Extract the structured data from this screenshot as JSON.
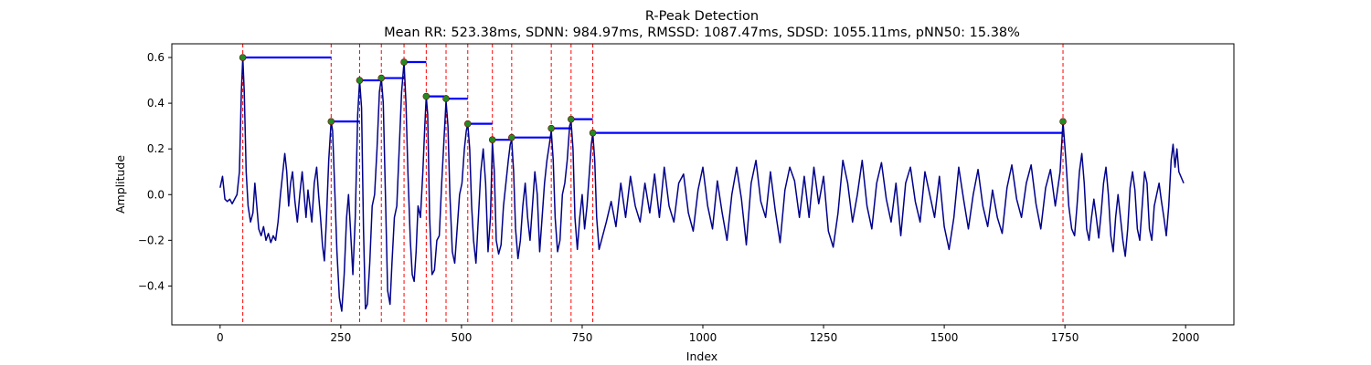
{
  "chart_data": {
    "type": "line",
    "title": "R-Peak Detection",
    "subtitle": "Mean RR: 523.38ms, SDNN: 984.97ms, RMSSD: 1087.47ms, SDSD: 1055.11ms, pNN50: 15.38%",
    "xlabel": "Index",
    "ylabel": "Amplitude",
    "xlim": [
      -100,
      2100
    ],
    "ylim": [
      -0.57,
      0.66
    ],
    "xticks": [
      0,
      250,
      500,
      750,
      1000,
      1250,
      1500,
      1750,
      2000
    ],
    "xtick_labels": [
      "0",
      "250",
      "500",
      "750",
      "1000",
      "1250",
      "1500",
      "1750",
      "2000"
    ],
    "yticks": [
      -0.4,
      -0.2,
      0.0,
      0.2,
      0.4,
      0.6
    ],
    "ytick_labels": [
      "−0.4",
      "−0.2",
      "0.0",
      "0.2",
      "0.4",
      "0.6"
    ],
    "grid": false,
    "signal": {
      "color": "#00008b",
      "points": [
        [
          0,
          0.03
        ],
        [
          5,
          0.08
        ],
        [
          10,
          -0.02
        ],
        [
          15,
          -0.03
        ],
        [
          20,
          -0.02
        ],
        [
          25,
          -0.04
        ],
        [
          30,
          -0.02
        ],
        [
          35,
          0.0
        ],
        [
          40,
          0.1
        ],
        [
          44,
          0.45
        ],
        [
          47,
          0.6
        ],
        [
          50,
          0.45
        ],
        [
          54,
          0.1
        ],
        [
          58,
          -0.05
        ],
        [
          63,
          -0.12
        ],
        [
          68,
          -0.08
        ],
        [
          72,
          0.05
        ],
        [
          76,
          -0.05
        ],
        [
          80,
          -0.15
        ],
        [
          85,
          -0.18
        ],
        [
          90,
          -0.14
        ],
        [
          95,
          -0.2
        ],
        [
          100,
          -0.17
        ],
        [
          105,
          -0.21
        ],
        [
          110,
          -0.18
        ],
        [
          115,
          -0.2
        ],
        [
          120,
          -0.12
        ],
        [
          125,
          0.0
        ],
        [
          130,
          0.1
        ],
        [
          134,
          0.18
        ],
        [
          138,
          0.1
        ],
        [
          142,
          -0.05
        ],
        [
          146,
          0.05
        ],
        [
          150,
          0.1
        ],
        [
          155,
          -0.03
        ],
        [
          160,
          -0.12
        ],
        [
          165,
          0.0
        ],
        [
          170,
          0.1
        ],
        [
          174,
          0.0
        ],
        [
          178,
          -0.1
        ],
        [
          182,
          0.02
        ],
        [
          186,
          -0.05
        ],
        [
          190,
          -0.12
        ],
        [
          195,
          0.05
        ],
        [
          200,
          0.12
        ],
        [
          204,
          0.0
        ],
        [
          208,
          -0.1
        ],
        [
          212,
          -0.22
        ],
        [
          216,
          -0.29
        ],
        [
          220,
          -0.12
        ],
        [
          225,
          0.15
        ],
        [
          230,
          0.32
        ],
        [
          233,
          0.28
        ],
        [
          237,
          0.05
        ],
        [
          242,
          -0.25
        ],
        [
          247,
          -0.45
        ],
        [
          252,
          -0.51
        ],
        [
          257,
          -0.35
        ],
        [
          262,
          -0.1
        ],
        [
          266,
          0.0
        ],
        [
          270,
          -0.15
        ],
        [
          275,
          -0.35
        ],
        [
          280,
          -0.1
        ],
        [
          285,
          0.35
        ],
        [
          289,
          0.5
        ],
        [
          293,
          0.38
        ],
        [
          297,
          -0.15
        ],
        [
          301,
          -0.5
        ],
        [
          305,
          -0.48
        ],
        [
          310,
          -0.3
        ],
        [
          315,
          -0.05
        ],
        [
          320,
          0.0
        ],
        [
          325,
          0.2
        ],
        [
          330,
          0.45
        ],
        [
          334,
          0.51
        ],
        [
          338,
          0.4
        ],
        [
          343,
          -0.05
        ],
        [
          347,
          -0.42
        ],
        [
          352,
          -0.48
        ],
        [
          356,
          -0.3
        ],
        [
          361,
          -0.1
        ],
        [
          366,
          -0.05
        ],
        [
          371,
          0.2
        ],
        [
          376,
          0.45
        ],
        [
          381,
          0.58
        ],
        [
          385,
          0.4
        ],
        [
          389,
          0.1
        ],
        [
          394,
          -0.2
        ],
        [
          398,
          -0.35
        ],
        [
          402,
          -0.38
        ],
        [
          406,
          -0.25
        ],
        [
          410,
          -0.05
        ],
        [
          415,
          -0.1
        ],
        [
          420,
          0.1
        ],
        [
          424,
          0.3
        ],
        [
          427,
          0.43
        ],
        [
          430,
          0.35
        ],
        [
          434,
          -0.1
        ],
        [
          439,
          -0.35
        ],
        [
          444,
          -0.33
        ],
        [
          449,
          -0.2
        ],
        [
          454,
          -0.18
        ],
        [
          459,
          0.05
        ],
        [
          464,
          0.25
        ],
        [
          468,
          0.41
        ],
        [
          472,
          0.3
        ],
        [
          476,
          0.0
        ],
        [
          481,
          -0.25
        ],
        [
          486,
          -0.3
        ],
        [
          491,
          -0.15
        ],
        [
          496,
          0.0
        ],
        [
          501,
          0.05
        ],
        [
          506,
          0.2
        ],
        [
          510,
          0.28
        ],
        [
          513,
          0.31
        ],
        [
          517,
          0.2
        ],
        [
          521,
          -0.05
        ],
        [
          525,
          -0.2
        ],
        [
          530,
          -0.3
        ],
        [
          535,
          -0.1
        ],
        [
          540,
          0.1
        ],
        [
          545,
          0.2
        ],
        [
          550,
          0.05
        ],
        [
          555,
          -0.25
        ],
        [
          560,
          -0.1
        ],
        [
          564,
          0.23
        ],
        [
          568,
          0.1
        ],
        [
          572,
          -0.2
        ],
        [
          577,
          -0.26
        ],
        [
          582,
          -0.22
        ],
        [
          587,
          -0.05
        ],
        [
          592,
          0.05
        ],
        [
          597,
          0.15
        ],
        [
          601,
          0.22
        ],
        [
          604,
          0.24
        ],
        [
          608,
          0.1
        ],
        [
          612,
          -0.15
        ],
        [
          617,
          -0.28
        ],
        [
          622,
          -0.2
        ],
        [
          627,
          -0.05
        ],
        [
          632,
          0.05
        ],
        [
          637,
          -0.1
        ],
        [
          642,
          -0.2
        ],
        [
          647,
          -0.05
        ],
        [
          652,
          0.1
        ],
        [
          657,
          0.0
        ],
        [
          662,
          -0.25
        ],
        [
          667,
          -0.1
        ],
        [
          672,
          0.05
        ],
        [
          677,
          0.15
        ],
        [
          682,
          0.22
        ],
        [
          686,
          0.28
        ],
        [
          690,
          0.15
        ],
        [
          694,
          -0.1
        ],
        [
          699,
          -0.25
        ],
        [
          704,
          -0.2
        ],
        [
          709,
          0.0
        ],
        [
          714,
          0.05
        ],
        [
          719,
          0.15
        ],
        [
          724,
          0.3
        ],
        [
          727,
          0.32
        ],
        [
          731,
          0.2
        ],
        [
          735,
          -0.1
        ],
        [
          740,
          -0.24
        ],
        [
          745,
          -0.1
        ],
        [
          750,
          0.0
        ],
        [
          755,
          -0.15
        ],
        [
          760,
          -0.05
        ],
        [
          765,
          0.1
        ],
        [
          769,
          0.22
        ],
        [
          772,
          0.27
        ],
        [
          776,
          0.15
        ],
        [
          780,
          -0.1
        ],
        [
          785,
          -0.24
        ],
        [
          790,
          -0.2
        ],
        [
          800,
          -0.12
        ],
        [
          810,
          -0.03
        ],
        [
          820,
          -0.14
        ],
        [
          830,
          0.05
        ],
        [
          840,
          -0.1
        ],
        [
          850,
          0.08
        ],
        [
          860,
          -0.05
        ],
        [
          870,
          -0.12
        ],
        [
          880,
          0.05
        ],
        [
          890,
          -0.08
        ],
        [
          900,
          0.09
        ],
        [
          910,
          -0.1
        ],
        [
          920,
          0.12
        ],
        [
          930,
          -0.05
        ],
        [
          940,
          -0.12
        ],
        [
          950,
          0.05
        ],
        [
          960,
          0.09
        ],
        [
          970,
          -0.08
        ],
        [
          980,
          -0.16
        ],
        [
          990,
          0.02
        ],
        [
          1000,
          0.12
        ],
        [
          1010,
          -0.05
        ],
        [
          1020,
          -0.15
        ],
        [
          1030,
          0.06
        ],
        [
          1040,
          -0.08
        ],
        [
          1050,
          -0.2
        ],
        [
          1060,
          0.0
        ],
        [
          1070,
          0.12
        ],
        [
          1080,
          -0.02
        ],
        [
          1090,
          -0.22
        ],
        [
          1100,
          0.05
        ],
        [
          1110,
          0.15
        ],
        [
          1120,
          -0.03
        ],
        [
          1130,
          -0.1
        ],
        [
          1140,
          0.1
        ],
        [
          1150,
          -0.07
        ],
        [
          1160,
          -0.21
        ],
        [
          1170,
          0.02
        ],
        [
          1180,
          0.12
        ],
        [
          1190,
          0.06
        ],
        [
          1200,
          -0.1
        ],
        [
          1210,
          0.08
        ],
        [
          1220,
          -0.1
        ],
        [
          1230,
          0.12
        ],
        [
          1240,
          -0.04
        ],
        [
          1250,
          0.08
        ],
        [
          1260,
          -0.16
        ],
        [
          1270,
          -0.23
        ],
        [
          1280,
          -0.08
        ],
        [
          1290,
          0.15
        ],
        [
          1300,
          0.05
        ],
        [
          1310,
          -0.12
        ],
        [
          1320,
          0.0
        ],
        [
          1330,
          0.15
        ],
        [
          1340,
          -0.05
        ],
        [
          1350,
          -0.15
        ],
        [
          1360,
          0.05
        ],
        [
          1370,
          0.14
        ],
        [
          1380,
          -0.02
        ],
        [
          1390,
          -0.12
        ],
        [
          1400,
          0.05
        ],
        [
          1410,
          -0.18
        ],
        [
          1420,
          0.05
        ],
        [
          1430,
          0.12
        ],
        [
          1440,
          -0.03
        ],
        [
          1450,
          -0.12
        ],
        [
          1460,
          0.1
        ],
        [
          1470,
          0.0
        ],
        [
          1480,
          -0.1
        ],
        [
          1490,
          0.08
        ],
        [
          1500,
          -0.14
        ],
        [
          1510,
          -0.24
        ],
        [
          1520,
          -0.1
        ],
        [
          1530,
          0.12
        ],
        [
          1540,
          -0.02
        ],
        [
          1550,
          -0.15
        ],
        [
          1560,
          0.0
        ],
        [
          1570,
          0.11
        ],
        [
          1580,
          -0.05
        ],
        [
          1590,
          -0.14
        ],
        [
          1600,
          0.02
        ],
        [
          1610,
          -0.1
        ],
        [
          1620,
          -0.17
        ],
        [
          1630,
          0.03
        ],
        [
          1640,
          0.13
        ],
        [
          1650,
          -0.02
        ],
        [
          1660,
          -0.1
        ],
        [
          1670,
          0.05
        ],
        [
          1680,
          0.13
        ],
        [
          1690,
          -0.04
        ],
        [
          1700,
          -0.15
        ],
        [
          1710,
          0.03
        ],
        [
          1720,
          0.11
        ],
        [
          1730,
          -0.05
        ],
        [
          1740,
          0.1
        ],
        [
          1746,
          0.32
        ],
        [
          1752,
          0.15
        ],
        [
          1758,
          -0.05
        ],
        [
          1764,
          -0.15
        ],
        [
          1770,
          -0.18
        ],
        [
          1775,
          -0.05
        ],
        [
          1780,
          0.1
        ],
        [
          1785,
          0.18
        ],
        [
          1790,
          0.05
        ],
        [
          1795,
          -0.15
        ],
        [
          1800,
          -0.2
        ],
        [
          1805,
          -0.1
        ],
        [
          1810,
          -0.02
        ],
        [
          1815,
          -0.1
        ],
        [
          1820,
          -0.19
        ],
        [
          1825,
          -0.08
        ],
        [
          1830,
          0.05
        ],
        [
          1835,
          0.12
        ],
        [
          1840,
          0.0
        ],
        [
          1845,
          -0.18
        ],
        [
          1850,
          -0.25
        ],
        [
          1855,
          -0.1
        ],
        [
          1860,
          0.0
        ],
        [
          1865,
          -0.1
        ],
        [
          1870,
          -0.2
        ],
        [
          1875,
          -0.27
        ],
        [
          1880,
          -0.15
        ],
        [
          1885,
          0.03
        ],
        [
          1890,
          0.1
        ],
        [
          1895,
          0.02
        ],
        [
          1900,
          -0.15
        ],
        [
          1905,
          -0.2
        ],
        [
          1910,
          -0.05
        ],
        [
          1915,
          0.1
        ],
        [
          1920,
          0.05
        ],
        [
          1925,
          -0.15
        ],
        [
          1930,
          -0.2
        ],
        [
          1935,
          -0.05
        ],
        [
          1940,
          0.0
        ],
        [
          1945,
          0.05
        ],
        [
          1950,
          -0.03
        ],
        [
          1955,
          -0.1
        ],
        [
          1960,
          -0.18
        ],
        [
          1965,
          -0.05
        ],
        [
          1970,
          0.15
        ],
        [
          1974,
          0.22
        ],
        [
          1978,
          0.12
        ],
        [
          1982,
          0.2
        ],
        [
          1986,
          0.1
        ],
        [
          1990,
          0.08
        ],
        [
          1996,
          0.05
        ]
      ]
    },
    "r_peaks": {
      "color": "#228B22",
      "x": [
        47,
        230,
        289,
        334,
        381,
        427,
        468,
        513,
        564,
        604,
        686,
        727,
        772,
        1746
      ],
      "y": [
        0.6,
        0.32,
        0.5,
        0.51,
        0.58,
        0.43,
        0.42,
        0.31,
        0.24,
        0.25,
        0.29,
        0.33,
        0.27,
        0.32
      ]
    },
    "rr_segments": {
      "color": "#0000ff",
      "ends": [
        230,
        289,
        334,
        381,
        427,
        468,
        513,
        564,
        604,
        686,
        727,
        772,
        1746,
        1746
      ]
    },
    "vlines": {
      "color": "#ff0000",
      "style": "dashed"
    }
  }
}
